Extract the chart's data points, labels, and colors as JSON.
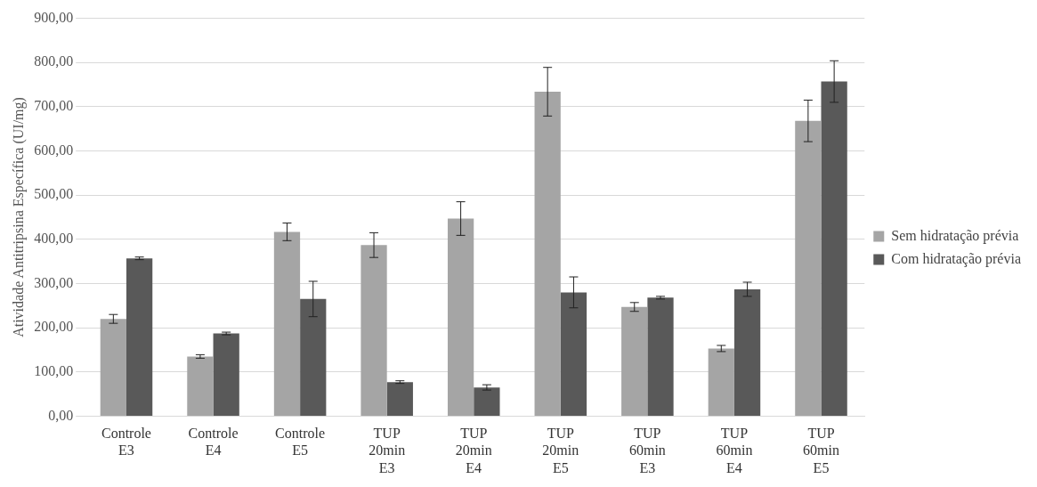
{
  "chart_data": {
    "type": "bar",
    "ylabel": "Atividade Antitripsina Específica (UI/mg)",
    "categories": [
      "Controle E3",
      "Controle E4",
      "Controle E5",
      "TUP 20min E3",
      "TUP 20min E4",
      "TUP 20min E5",
      "TUP 60min E3",
      "TUP 60min E4",
      "TUP 60min E5"
    ],
    "series": [
      {
        "name": "Sem hidratação prévia",
        "color": "#a5a5a5",
        "values": [
          220,
          135,
          417,
          387,
          447,
          734,
          247,
          153,
          668
        ],
        "errors": [
          10,
          4,
          20,
          28,
          38,
          55,
          10,
          7,
          47
        ]
      },
      {
        "name": "Com hidratação prévia",
        "color": "#595959",
        "values": [
          357,
          187,
          265,
          77,
          65,
          280,
          268,
          287,
          757
        ],
        "errors": [
          3,
          3,
          40,
          3,
          6,
          35,
          3,
          16,
          47
        ]
      }
    ],
    "ylim": [
      0,
      900
    ],
    "yticks": [
      {
        "value": 0,
        "label": "0,00"
      },
      {
        "value": 100,
        "label": "100,00"
      },
      {
        "value": 200,
        "label": "200,00"
      },
      {
        "value": 300,
        "label": "300,00"
      },
      {
        "value": 400,
        "label": "400,00"
      },
      {
        "value": 500,
        "label": "500,00"
      },
      {
        "value": 600,
        "label": "600,00"
      },
      {
        "value": 700,
        "label": "700,00"
      },
      {
        "value": 800,
        "label": "800,00"
      },
      {
        "value": 900,
        "label": "900,00"
      }
    ],
    "grid": "y",
    "legend": "right"
  }
}
